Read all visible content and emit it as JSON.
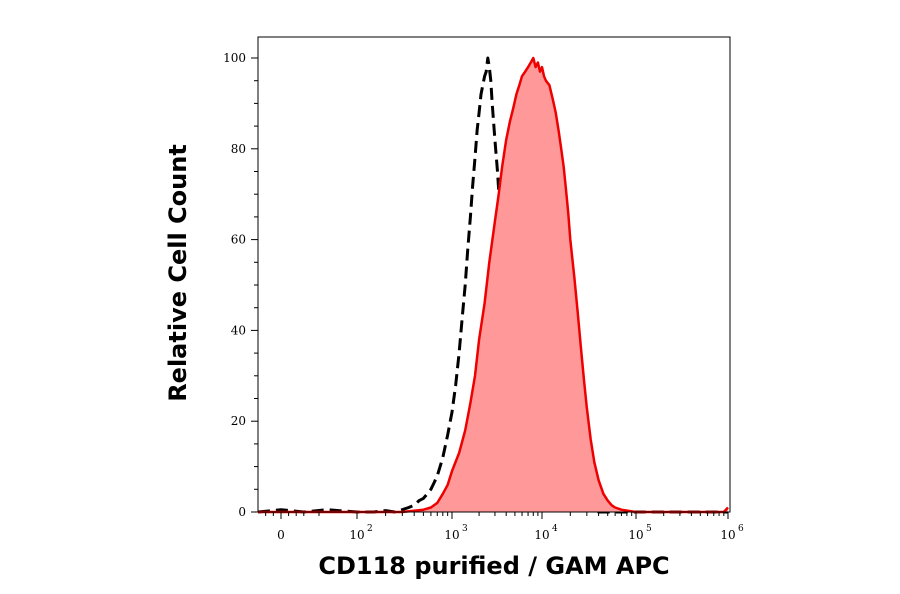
{
  "chart_data": {
    "type": "area",
    "title": "",
    "xlabel": "CD118 purified / GAM APC",
    "ylabel": "Relative Cell Count",
    "x_scale": "biexponential",
    "xlim": [
      -30,
      1000000
    ],
    "ylim": [
      0,
      100
    ],
    "grid": false,
    "x_ticks": [
      {
        "value": 0,
        "base": "0",
        "exp": ""
      },
      {
        "value": 100,
        "base": "10",
        "exp": "2"
      },
      {
        "value": 1000,
        "base": "10",
        "exp": "3"
      },
      {
        "value": 10000,
        "base": "10",
        "exp": "4"
      },
      {
        "value": 100000,
        "base": "10",
        "exp": "5"
      },
      {
        "value": 1000000,
        "base": "10",
        "exp": "6"
      }
    ],
    "y_ticks": [
      0,
      20,
      40,
      60,
      80,
      100
    ],
    "series": [
      {
        "style": "dashed",
        "color": "#000000",
        "fill": "none",
        "x": [
          -30,
          0,
          30,
          60,
          100,
          150,
          200,
          250,
          300,
          350,
          400,
          450,
          500,
          550,
          600,
          650,
          700,
          750,
          800,
          900,
          1000,
          1100,
          1200,
          1300,
          1400,
          1500,
          1600,
          1700,
          1800,
          1900,
          2000,
          2100,
          2200,
          2300,
          2400,
          2500,
          2600,
          2700,
          2800,
          3000,
          3200,
          3400,
          3600,
          3800,
          4000,
          4200,
          4400,
          4600,
          4800,
          5000,
          5300,
          5600,
          6000,
          6500,
          7000,
          7500,
          8000,
          8500,
          9000,
          9500,
          10000,
          11000,
          12000,
          13000,
          14000,
          15000,
          16000,
          17000,
          18000,
          20000,
          22000,
          24000,
          26000,
          28000,
          30000,
          33000,
          36000,
          40000,
          50000,
          100000,
          1000000
        ],
        "y": [
          0,
          0.5,
          0,
          0.5,
          0,
          0,
          0.3,
          0,
          0.5,
          1,
          1.5,
          2.5,
          3,
          4,
          5,
          6.5,
          8,
          10,
          12,
          17,
          22,
          28,
          35,
          43,
          50,
          58,
          65,
          72,
          78,
          84,
          88,
          92,
          94,
          96,
          97,
          100,
          98,
          95,
          90,
          82,
          75,
          67,
          60,
          55,
          50,
          45,
          40,
          35,
          32,
          30,
          28,
          27,
          26,
          24,
          22,
          20,
          19,
          20,
          18,
          17,
          15,
          17,
          15,
          14,
          13,
          14,
          12,
          10,
          8,
          6,
          4,
          3,
          2,
          1.5,
          1,
          0.5,
          0.3,
          0,
          0,
          0,
          0
        ]
      },
      {
        "style": "solid",
        "color": "#ee0000",
        "fill": "#ff9999",
        "x": [
          -30,
          0,
          100,
          300,
          500,
          600,
          700,
          800,
          900,
          1000,
          1200,
          1400,
          1600,
          1800,
          2000,
          2300,
          2600,
          3000,
          3300,
          3600,
          4000,
          4400,
          4800,
          5200,
          5600,
          6000,
          6500,
          7000,
          7500,
          8000,
          8500,
          9000,
          9500,
          10000,
          10500,
          11000,
          12000,
          13000,
          14000,
          15000,
          16000,
          17000,
          18000,
          19000,
          20000,
          22000,
          24000,
          26000,
          28000,
          30000,
          33000,
          36000,
          40000,
          45000,
          50000,
          55000,
          60000,
          70000,
          80000,
          100000,
          200000,
          500000,
          900000,
          1000000
        ],
        "y": [
          0,
          0,
          0,
          0,
          0.5,
          1,
          2,
          4,
          6,
          9,
          13,
          18,
          24,
          30,
          38,
          46,
          55,
          64,
          70,
          76,
          82,
          86,
          89,
          92,
          94,
          96,
          97,
          98,
          99,
          100,
          98,
          99,
          97,
          98,
          96,
          95,
          94,
          91,
          88,
          84,
          80,
          76,
          71,
          66,
          60,
          52,
          44,
          36,
          29,
          23,
          16,
          11,
          7,
          4,
          2.5,
          1.5,
          1,
          0.5,
          0.3,
          0,
          0,
          0,
          0,
          1
        ]
      }
    ]
  }
}
